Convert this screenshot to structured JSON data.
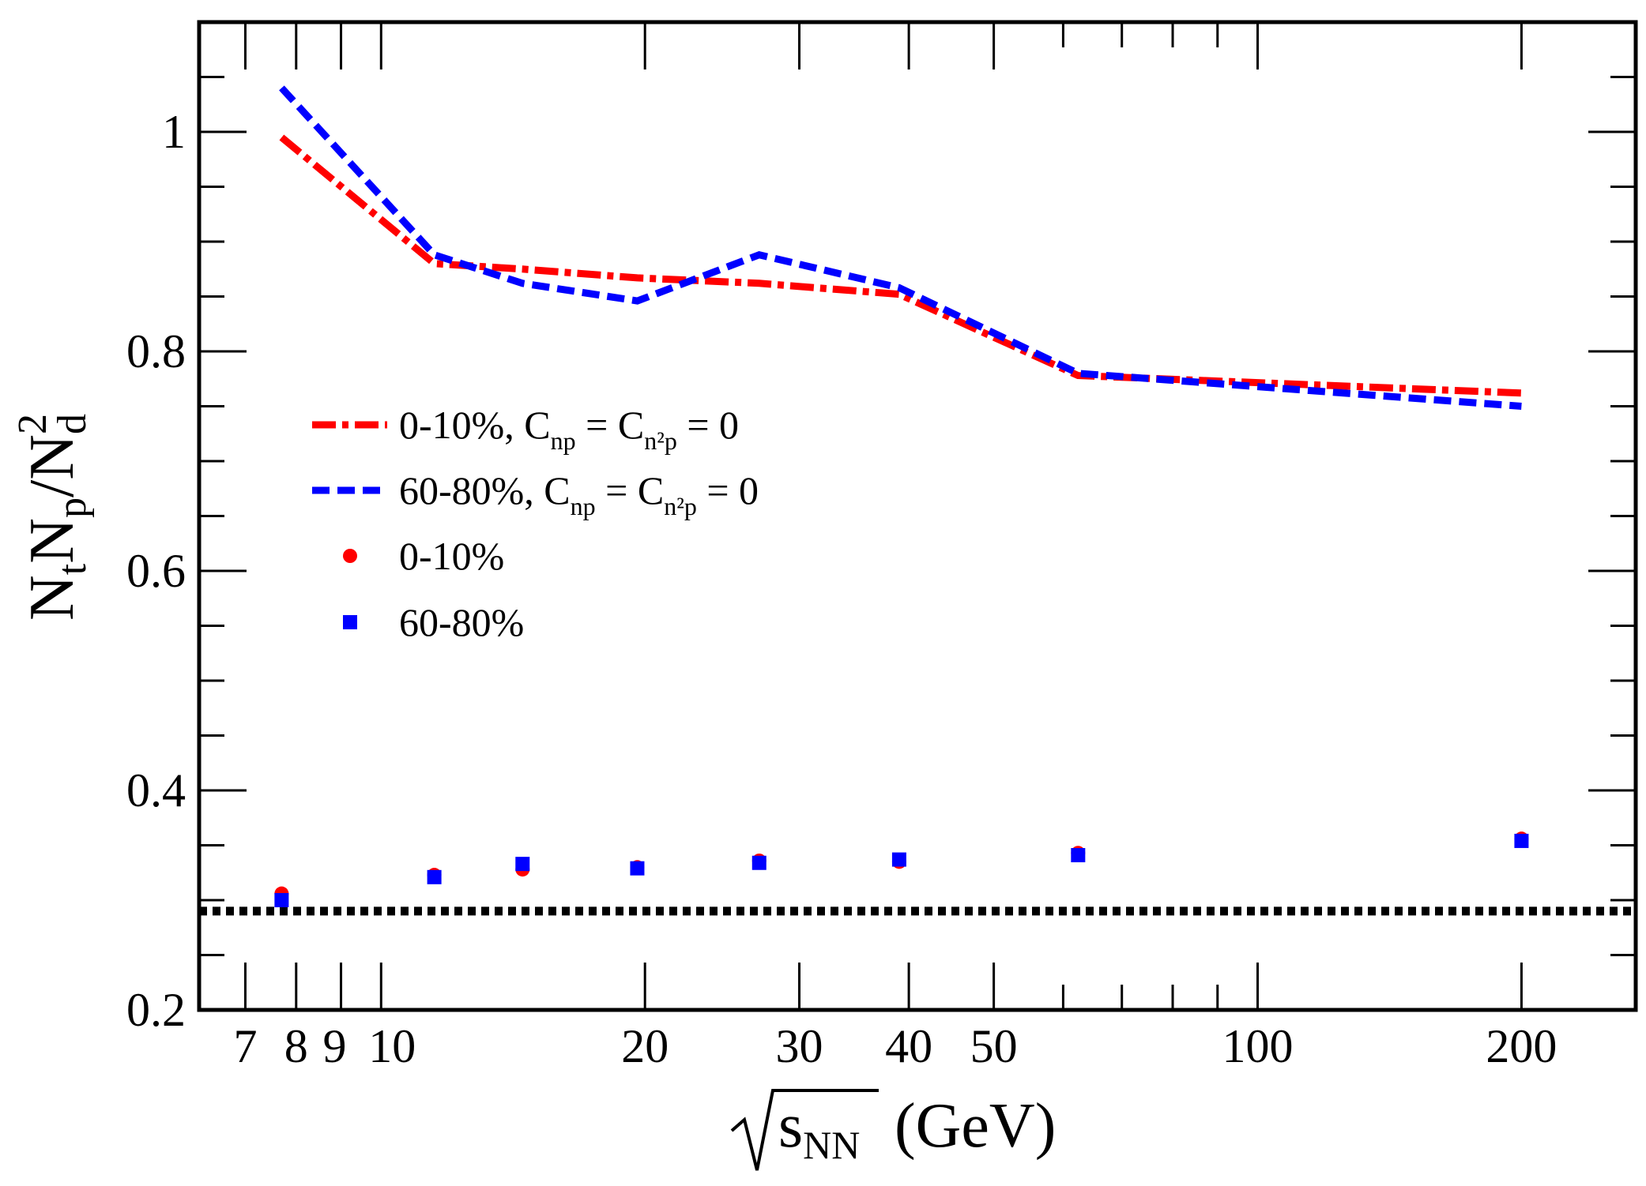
{
  "chart_data": {
    "type": "line",
    "xaxis": {
      "scale": "log",
      "range": [
        6.2,
        270
      ],
      "major_ticks": [
        7,
        8,
        9,
        10,
        20,
        30,
        40,
        50,
        100,
        200
      ],
      "tick_labels": [
        "7",
        "8",
        "9",
        "10",
        "20",
        "30",
        "40",
        "50",
        "100",
        "200"
      ],
      "label_base": "s",
      "label_sub": "NN",
      "label_unit": "(GeV)"
    },
    "yaxis": {
      "range": [
        0.2,
        1.1
      ],
      "major_ticks": [
        0.2,
        0.4,
        0.6,
        0.8,
        1.0
      ],
      "tick_labels": [
        "0.2",
        "0.4",
        "0.6",
        "0.8",
        "1"
      ],
      "minor_step": 0.05,
      "label_parts": {
        "n1": "N",
        "s1": "t",
        "n2": "N",
        "s2": "p",
        "slash": "/",
        "n3": "N",
        "s3": "d",
        "sup3": "2"
      }
    },
    "grid": false,
    "reference_line": {
      "y": 0.29,
      "style": "dotted",
      "color": "#000000"
    },
    "series": [
      {
        "name": "0-10%, C_np = C_n2p = 0",
        "kind": "line",
        "style": "dashdot",
        "color": "#ff0000",
        "x": [
          7.7,
          11.5,
          14.5,
          19.6,
          27,
          39,
          62.4,
          200
        ],
        "y": [
          0.995,
          0.88,
          0.875,
          0.867,
          0.862,
          0.852,
          0.778,
          0.762
        ]
      },
      {
        "name": "60-80%, C_np = C_n2p = 0",
        "kind": "line",
        "style": "dashed",
        "color": "#0000ff",
        "x": [
          7.7,
          11.5,
          14.5,
          19.6,
          27,
          39,
          62.4,
          200
        ],
        "y": [
          1.04,
          0.888,
          0.862,
          0.846,
          0.888,
          0.858,
          0.78,
          0.75
        ]
      },
      {
        "name": "0-10%",
        "kind": "scatter",
        "marker": "circle",
        "color": "#ff0000",
        "x": [
          7.7,
          11.5,
          14.5,
          19.6,
          27,
          39,
          62.4,
          200
        ],
        "y": [
          0.306,
          0.323,
          0.328,
          0.33,
          0.336,
          0.335,
          0.343,
          0.356
        ]
      },
      {
        "name": "60-80%",
        "kind": "scatter",
        "marker": "square",
        "color": "#0000ff",
        "x": [
          7.7,
          11.5,
          14.5,
          19.6,
          27,
          39,
          62.4,
          200
        ],
        "y": [
          0.3,
          0.321,
          0.333,
          0.329,
          0.334,
          0.337,
          0.341,
          0.354
        ]
      }
    ],
    "legend": {
      "position": "middle-left",
      "entries": [
        {
          "series": 0,
          "label_parts": {
            "a": "0-10%, C",
            "a_sub": "np",
            "b": " = C",
            "b_sub": "n²p",
            "c": " = 0"
          }
        },
        {
          "series": 1,
          "label_parts": {
            "a": "60-80%, C",
            "a_sub": "np",
            "b": " = C",
            "b_sub": "n²p",
            "c": " = 0"
          }
        },
        {
          "series": 2,
          "label_parts": {
            "a": "0-10%"
          }
        },
        {
          "series": 3,
          "label_parts": {
            "a": "60-80%"
          }
        }
      ]
    }
  }
}
